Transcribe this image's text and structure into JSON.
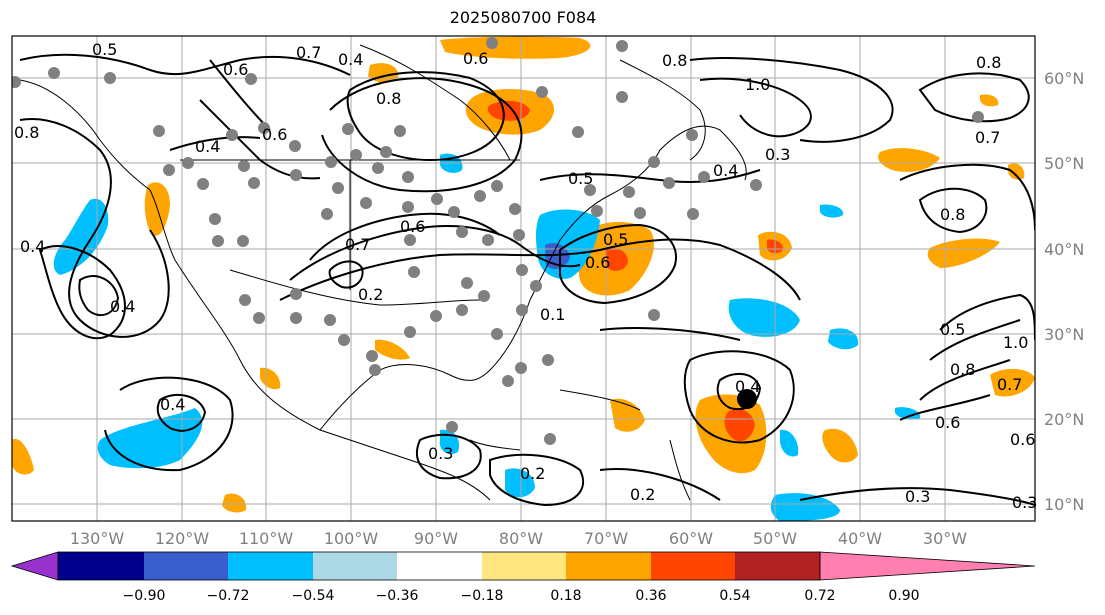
{
  "title": "2025080700 F084",
  "map": {
    "lon_labels": [
      "130°W",
      "120°W",
      "110°W",
      "100°W",
      "90°W",
      "80°W",
      "70°W",
      "60°W",
      "50°W",
      "40°W",
      "30°W"
    ],
    "lat_labels": [
      "60°N",
      "50°N",
      "40°N",
      "30°N",
      "20°N",
      "10°N"
    ],
    "contour_labels": [
      "0.5",
      "0.6",
      "0.7",
      "0.8",
      "0.6",
      "0.8",
      "0.4",
      "0.8",
      "0.6",
      "0.7",
      "0.8",
      "1.0",
      "0.8",
      "0.7",
      "0.6",
      "0.4",
      "0.4",
      "0.4",
      "0.5",
      "0.3",
      "0.3",
      "0.2",
      "0.2",
      "0.3",
      "0.5",
      "0.6",
      "0.4",
      "0.5",
      "0.6",
      "0.8",
      "1.0",
      "0.7",
      "0.6",
      "0.4",
      "0.2",
      "0.1",
      "0.3",
      "0.4"
    ],
    "feature_marker": "black-dot"
  },
  "colorbar": {
    "ticks": [
      "−0.90",
      "−0.72",
      "−0.54",
      "−0.36",
      "−0.18",
      "0.18",
      "0.36",
      "0.54",
      "0.72",
      "0.90"
    ],
    "colors": [
      "#9932cc",
      "#00008b",
      "#3a5fcd",
      "#00bfff",
      "#add8e6",
      "#ffffff",
      "#ffe680",
      "#ffa500",
      "#ff4500",
      "#b22222",
      "#ff80b0"
    ]
  }
}
